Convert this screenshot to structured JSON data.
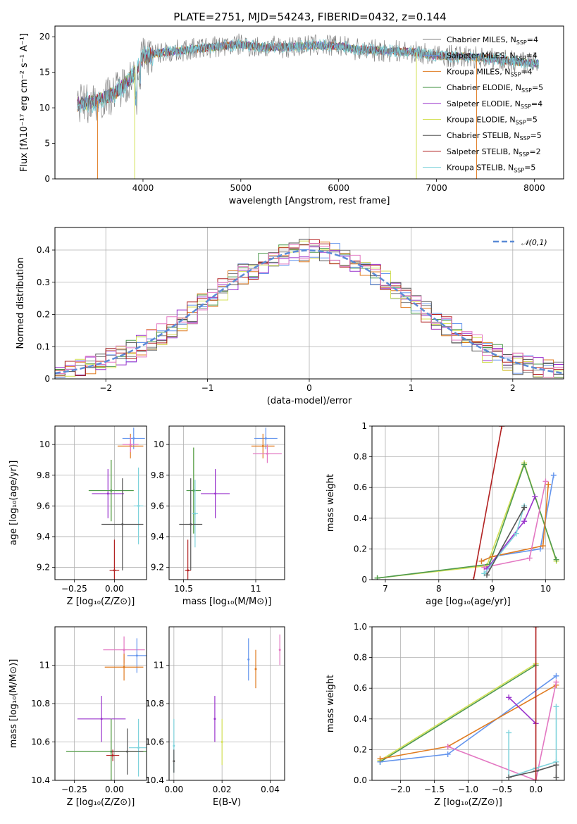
{
  "figure_title": "PLATE=2751, MJD=54243, FIBERID=0432, z=0.144",
  "colors": {
    "Chabrier MILES": "#808080",
    "Salpeter MILES": "#6495ed",
    "Kroupa MILES": "#e07b20",
    "Chabrier ELODIE": "#4f9a4f",
    "Salpeter ELODIE": "#9932cc",
    "Kroupa ELODIE": "#d4e157",
    "Chabrier STELIB": "#555555",
    "Salpeter STELIB": "#b22222",
    "Kroupa STELIB": "#7fd3dc",
    "pink": "#e377c2",
    "normal": "#5b8bd6"
  },
  "chart_data": [
    {
      "id": "spectrum",
      "type": "line",
      "title": "PLATE=2751, MJD=54243, FIBERID=0432, z=0.144",
      "xlabel": "wavelength [Angstrom, rest frame]",
      "ylabel": "Flux [fλ10⁻¹⁷ erg cm⁻² s⁻¹ A⁻¹]",
      "xlim": [
        3100,
        8300
      ],
      "ylim": [
        0,
        21.5
      ],
      "xticks": [
        4000,
        5000,
        6000,
        7000,
        8000
      ],
      "yticks": [
        0,
        5,
        10,
        15,
        20
      ],
      "legend_position": "top-right",
      "legend": [
        "Chabrier MILES, N_SSP=4",
        "Salpeter MILES, N_SSP=4",
        "Kroupa MILES, N_SSP=4",
        "Chabrier ELODIE, N_SSP=5",
        "Salpeter ELODIE, N_SSP=4",
        "Kroupa ELODIE, N_SSP=5",
        "Chabrier STELIB, N_SSP=5",
        "Salpeter STELIB, N_SSP=2",
        "Kroupa STELIB, N_SSP=5"
      ],
      "legend_main": [
        "Chabrier MILES, N",
        "Salpeter MILES, N",
        "Kroupa MILES, N",
        "Chabrier ELODIE, N",
        "Salpeter ELODIE, N",
        "Kroupa ELODIE, N",
        "Chabrier STELIB, N",
        "Salpeter STELIB, N",
        "Kroupa STELIB, N"
      ],
      "legend_sub": "SSP",
      "legend_tail": [
        "=4",
        "=4",
        "=4",
        "=5",
        "=4",
        "=5",
        "=5",
        "=2",
        "=5"
      ],
      "continuum": {
        "x": [
          3330,
          3500,
          3700,
          3900,
          4000,
          4200,
          4500,
          4800,
          5000,
          5200,
          5500,
          5800,
          6000,
          6200,
          6500,
          6800,
          7000,
          7300,
          7600,
          7800,
          8050
        ],
        "y": [
          10.5,
          10.8,
          12.0,
          14.5,
          17.2,
          17.8,
          18.2,
          18.7,
          18.9,
          18.5,
          18.6,
          18.8,
          18.7,
          18.2,
          18.0,
          17.8,
          17.3,
          17.2,
          16.9,
          16.5,
          16.2
        ]
      },
      "drops": [
        {
          "x": 3535,
          "color": "Kroupa MILES"
        },
        {
          "x": 3915,
          "color": "Kroupa ELODIE"
        },
        {
          "x": 6795,
          "color": "Kroupa ELODIE"
        },
        {
          "x": 7410,
          "color": "Kroupa MILES"
        }
      ]
    },
    {
      "id": "residuals",
      "type": "bar",
      "xlabel": "(data-model)/error",
      "ylabel": "Normed distribution",
      "xlim": [
        -2.5,
        2.5
      ],
      "ylim": [
        0,
        0.47
      ],
      "xticks": [
        -2,
        -1,
        0,
        1,
        2
      ],
      "yticks": [
        0.0,
        0.1,
        0.2,
        0.3,
        0.4
      ],
      "legend_position": "top-right",
      "legend": [
        "𝒩(0,1)"
      ],
      "bin_width": 0.1
    },
    {
      "id": "age-vs-Z",
      "type": "scatter",
      "xlabel": "Z [log₁₀(Z/Z⊙)]",
      "ylabel": "age  [log₁₀(age/yr)]",
      "xlim": [
        -0.37,
        0.2
      ],
      "ylim": [
        9.12,
        10.12
      ],
      "xticks": [
        -0.25,
        0.0
      ],
      "yticks": [
        9.2,
        9.4,
        9.6,
        9.8,
        10.0
      ],
      "points": [
        {
          "c": "Salpeter MILES",
          "x": 0.12,
          "y": 10.04,
          "dx": 0.07,
          "dy": 0.07
        },
        {
          "c": "Kroupa MILES",
          "x": 0.1,
          "y": 9.99,
          "dx": 0.08,
          "dy": 0.08
        },
        {
          "c": "pink",
          "x": 0.1,
          "y": 10.0,
          "dx": 0.05,
          "dy": 0.05
        },
        {
          "c": "Salpeter ELODIE",
          "x": -0.04,
          "y": 9.68,
          "dx": 0.1,
          "dy": 0.16
        },
        {
          "c": "Kroupa ELODIE",
          "x": -0.02,
          "y": 9.7,
          "dx": 0.14,
          "dy": 0.2
        },
        {
          "c": "Chabrier ELODIE",
          "x": -0.02,
          "y": 9.7,
          "dx": 0.14,
          "dy": 0.2
        },
        {
          "c": "Kroupa STELIB",
          "x": 0.15,
          "y": 9.6,
          "dx": 0.03,
          "dy": 0.25
        },
        {
          "c": "Chabrier STELIB",
          "x": 0.05,
          "y": 9.48,
          "dx": 0.13,
          "dy": 0.3
        },
        {
          "c": "Salpeter STELIB",
          "x": 0.0,
          "y": 9.18,
          "dx": 0.03,
          "dy": 0.2
        }
      ]
    },
    {
      "id": "age-vs-mass",
      "type": "scatter",
      "xlabel": "mass [log₁₀(M/M⊙)]",
      "ylabel": "",
      "xlim": [
        10.4,
        11.2
      ],
      "ylim": [
        9.12,
        10.12
      ],
      "xticks": [
        10.5,
        11.0
      ],
      "yticks": [
        9.2,
        9.4,
        9.6,
        9.8,
        10.0
      ],
      "points": [
        {
          "c": "Salpeter MILES",
          "x": 11.07,
          "y": 10.04,
          "dx": 0.08,
          "dy": 0.07
        },
        {
          "c": "Kroupa MILES",
          "x": 11.05,
          "y": 9.99,
          "dx": 0.08,
          "dy": 0.08
        },
        {
          "c": "pink",
          "x": 11.08,
          "y": 9.94,
          "dx": 0.1,
          "dy": 0.06
        },
        {
          "c": "Salpeter ELODIE",
          "x": 10.72,
          "y": 9.68,
          "dx": 0.1,
          "dy": 0.16
        },
        {
          "c": "Kroupa ELODIE",
          "x": 10.57,
          "y": 9.7,
          "dx": 0.04,
          "dy": 0.28
        },
        {
          "c": "Chabrier ELODIE",
          "x": 10.57,
          "y": 9.7,
          "dx": 0.05,
          "dy": 0.28
        },
        {
          "c": "Kroupa STELIB",
          "x": 10.58,
          "y": 9.55,
          "dx": 0.02,
          "dy": 0.22
        },
        {
          "c": "Chabrier STELIB",
          "x": 10.55,
          "y": 9.48,
          "dx": 0.08,
          "dy": 0.3
        },
        {
          "c": "Salpeter STELIB",
          "x": 10.53,
          "y": 9.18,
          "dx": 0.02,
          "dy": 0.2
        }
      ]
    },
    {
      "id": "weight-vs-age",
      "type": "line",
      "xlabel": "age  [log₁₀(age/yr)]",
      "ylabel": "mass weight",
      "xlim": [
        6.75,
        10.35
      ],
      "ylim": [
        0,
        1.0
      ],
      "xticks": [
        7,
        8,
        9,
        10
      ],
      "yticks": [
        0.0,
        0.2,
        0.4,
        0.6,
        0.8,
        1.0
      ],
      "series": [
        {
          "c": "Kroupa ELODIE",
          "x": [
            6.85,
            8.9,
            9.6,
            10.2
          ],
          "y": [
            0.01,
            0.09,
            0.76,
            0.12
          ]
        },
        {
          "c": "Chabrier ELODIE",
          "x": [
            6.85,
            8.95,
            9.6,
            10.2
          ],
          "y": [
            0.01,
            0.1,
            0.75,
            0.13
          ]
        },
        {
          "c": "Salpeter MILES",
          "x": [
            8.8,
            9.0,
            9.9,
            10.15
          ],
          "y": [
            0.12,
            0.15,
            0.2,
            0.68
          ]
        },
        {
          "c": "Kroupa MILES",
          "x": [
            8.8,
            9.0,
            9.95,
            10.05
          ],
          "y": [
            0.12,
            0.15,
            0.22,
            0.62
          ]
        },
        {
          "c": "pink",
          "x": [
            8.85,
            9.7,
            10.0
          ],
          "y": [
            0.08,
            0.14,
            0.64
          ]
        },
        {
          "c": "Salpeter ELODIE",
          "x": [
            8.9,
            9.6,
            9.8
          ],
          "y": [
            0.07,
            0.38,
            0.54
          ]
        },
        {
          "c": "Kroupa STELIB",
          "x": [
            8.85,
            9.45,
            9.6
          ],
          "y": [
            0.04,
            0.3,
            0.48
          ]
        },
        {
          "c": "Chabrier STELIB",
          "x": [
            8.9,
            9.6
          ],
          "y": [
            0.03,
            0.47
          ]
        },
        {
          "c": "Salpeter STELIB",
          "x": [
            8.65,
            9.18
          ],
          "y": [
            0.0,
            1.0
          ]
        }
      ]
    },
    {
      "id": "mass-vs-Z",
      "type": "scatter",
      "xlabel": "Z [log₁₀(Z/Z⊙)]",
      "ylabel": "mass [log₁₀(M/M⊙)]",
      "xlim": [
        -0.37,
        0.2
      ],
      "ylim": [
        10.4,
        11.2
      ],
      "xticks": [
        -0.25,
        0.0
      ],
      "yticks": [
        10.4,
        10.6,
        10.8,
        11.0
      ],
      "points": [
        {
          "c": "pink",
          "x": 0.06,
          "y": 11.08,
          "dx": 0.13,
          "dy": 0.07
        },
        {
          "c": "Salpeter MILES",
          "x": 0.14,
          "y": 11.05,
          "dx": 0.06,
          "dy": 0.09
        },
        {
          "c": "Kroupa MILES",
          "x": 0.06,
          "y": 10.99,
          "dx": 0.12,
          "dy": 0.07
        },
        {
          "c": "Salpeter ELODIE",
          "x": -0.08,
          "y": 10.72,
          "dx": 0.15,
          "dy": 0.12
        },
        {
          "c": "Kroupa ELODIE",
          "x": -0.02,
          "y": 10.55,
          "dx": 0.28,
          "dy": 0.17
        },
        {
          "c": "Chabrier ELODIE",
          "x": -0.02,
          "y": 10.55,
          "dx": 0.28,
          "dy": 0.17
        },
        {
          "c": "Kroupa STELIB",
          "x": 0.15,
          "y": 10.57,
          "dx": 0.06,
          "dy": 0.15
        },
        {
          "c": "Chabrier STELIB",
          "x": 0.08,
          "y": 10.55,
          "dx": 0.1,
          "dy": 0.12
        },
        {
          "c": "Salpeter STELIB",
          "x": -0.01,
          "y": 10.53,
          "dx": 0.04,
          "dy": 0.03
        }
      ]
    },
    {
      "id": "mass-vs-ebv",
      "type": "scatter",
      "xlabel": "E(B-V)",
      "ylabel": "",
      "xlim": [
        -0.002,
        0.046
      ],
      "ylim": [
        10.4,
        11.2
      ],
      "xticks": [
        0.0,
        0.02,
        0.04
      ],
      "yticks": [
        10.4,
        10.6,
        10.8,
        11.0
      ],
      "points": [
        {
          "c": "Salpeter MILES",
          "x": 0.031,
          "y": 11.03,
          "dx": 0.0,
          "dy": 0.11
        },
        {
          "c": "Kroupa MILES",
          "x": 0.034,
          "y": 10.98,
          "dx": 0.0,
          "dy": 0.1
        },
        {
          "c": "pink",
          "x": 0.044,
          "y": 11.08,
          "dx": 0.0,
          "dy": 0.08
        },
        {
          "c": "Salpeter ELODIE",
          "x": 0.017,
          "y": 10.72,
          "dx": 0.0,
          "dy": 0.12
        },
        {
          "c": "Kroupa ELODIE",
          "x": 0.02,
          "y": 10.6,
          "dx": 0.0,
          "dy": 0.12
        },
        {
          "c": "Kroupa STELIB",
          "x": 0.0,
          "y": 10.58,
          "dx": 0.0,
          "dy": 0.14
        },
        {
          "c": "Chabrier STELIB",
          "x": 0.0,
          "y": 10.5,
          "dx": 0.0,
          "dy": 0.06
        }
      ]
    },
    {
      "id": "weight-vs-Z",
      "type": "line",
      "xlabel": "Z [log₁₀(Z/Z⊙)]",
      "ylabel": "mass weight",
      "xlim": [
        -2.42,
        0.42
      ],
      "ylim": [
        0,
        1.0
      ],
      "xticks": [
        -2.0,
        -1.5,
        -1.0,
        -0.5,
        0.0
      ],
      "yticks": [
        0.0,
        0.2,
        0.4,
        0.6,
        0.8,
        1.0
      ],
      "series": [
        {
          "c": "Kroupa ELODIE",
          "x": [
            -2.3,
            0.0
          ],
          "y": [
            0.13,
            0.76
          ]
        },
        {
          "c": "Chabrier ELODIE",
          "x": [
            -2.3,
            0.0
          ],
          "y": [
            0.12,
            0.75
          ]
        },
        {
          "c": "Salpeter MILES",
          "x": [
            -2.3,
            -1.3,
            0.3
          ],
          "y": [
            0.12,
            0.17,
            0.68
          ]
        },
        {
          "c": "Kroupa MILES",
          "x": [
            -2.3,
            -1.3,
            0.3
          ],
          "y": [
            0.14,
            0.22,
            0.62
          ]
        },
        {
          "c": "pink",
          "x": [
            -1.3,
            0.0,
            0.3
          ],
          "y": [
            0.22,
            0.0,
            0.64
          ]
        },
        {
          "c": "Salpeter ELODIE",
          "x": [
            -0.4,
            0.0
          ],
          "y": [
            0.54,
            0.37
          ]
        },
        {
          "c": "Kroupa STELIB",
          "x": [
            -0.4,
            -0.4,
            0.0,
            0.3,
            0.3
          ],
          "y": [
            0.31,
            0.02,
            0.08,
            0.12,
            0.48
          ]
        },
        {
          "c": "Chabrier STELIB",
          "x": [
            -0.4,
            0.0,
            0.3,
            0.3
          ],
          "y": [
            0.02,
            0.06,
            0.1,
            0.02
          ]
        },
        {
          "c": "Salpeter STELIB",
          "x": [
            0.0,
            0.0
          ],
          "y": [
            0.0,
            1.0
          ]
        }
      ]
    }
  ]
}
